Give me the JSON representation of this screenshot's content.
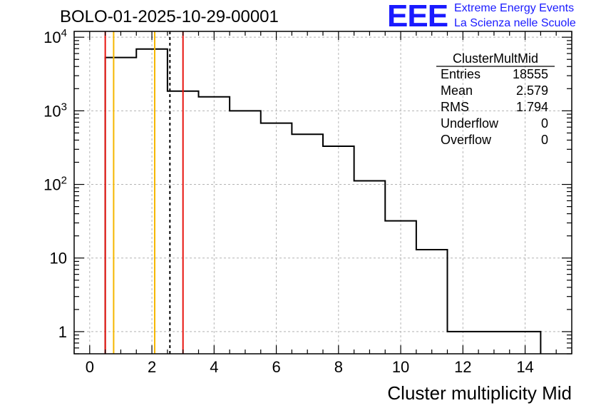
{
  "chart_data": {
    "type": "histogram",
    "title": "BOLO-01-2025-10-29-00001",
    "xlabel": "Cluster multiplicity Mid",
    "ylabel": "",
    "xlim": [
      -0.5,
      15.5
    ],
    "ylim": [
      0.5,
      12000
    ],
    "yscale": "log",
    "grid": true,
    "bins": [
      {
        "low": 0.5,
        "high": 1.5,
        "count": 5300
      },
      {
        "low": 1.5,
        "high": 2.5,
        "count": 6900
      },
      {
        "low": 2.5,
        "high": 3.5,
        "count": 1850
      },
      {
        "low": 3.5,
        "high": 4.5,
        "count": 1550
      },
      {
        "low": 4.5,
        "high": 5.5,
        "count": 1000
      },
      {
        "low": 5.5,
        "high": 6.5,
        "count": 680
      },
      {
        "low": 6.5,
        "high": 7.5,
        "count": 480
      },
      {
        "low": 7.5,
        "high": 8.5,
        "count": 330
      },
      {
        "low": 8.5,
        "high": 9.5,
        "count": 112
      },
      {
        "low": 9.5,
        "high": 10.5,
        "count": 32
      },
      {
        "low": 10.5,
        "high": 11.5,
        "count": 13
      },
      {
        "low": 11.5,
        "high": 14.5,
        "count": 1
      }
    ],
    "xticks": [
      "0",
      "2",
      "4",
      "6",
      "8",
      "10",
      "12",
      "14"
    ],
    "xtick_values": [
      0,
      2,
      4,
      6,
      8,
      10,
      12,
      14
    ],
    "yticks": [
      {
        "value": 10000,
        "base": "10",
        "exp": "4"
      },
      {
        "value": 1000,
        "base": "10",
        "exp": "3"
      },
      {
        "value": 100,
        "base": "10",
        "exp": "2"
      },
      {
        "value": 10,
        "base": "10",
        "exp": ""
      },
      {
        "value": 1,
        "base": "1",
        "exp": ""
      }
    ],
    "vlines": [
      {
        "x": 0.5,
        "color": "#e8140e",
        "style": "solid"
      },
      {
        "x": 0.77,
        "color": "#f5b700",
        "style": "solid"
      },
      {
        "x": 2.09,
        "color": "#f5b700",
        "style": "solid"
      },
      {
        "x": 2.579,
        "color": "#000000",
        "style": "dashed"
      },
      {
        "x": 3.0,
        "color": "#e8140e",
        "style": "solid"
      }
    ],
    "stats": {
      "name": "ClusterMultMid",
      "rows": [
        {
          "label": "Entries",
          "value": "18555"
        },
        {
          "label": "Mean",
          "value": "2.579"
        },
        {
          "label": "RMS",
          "value": "1.794"
        },
        {
          "label": "Underflow",
          "value": "0"
        },
        {
          "label": "Overflow",
          "value": "0"
        }
      ]
    }
  },
  "logo": {
    "mark": "EEE",
    "line1": "Extreme Energy Events",
    "line2": "La Scienza nelle Scuole",
    "color": "#1a1aff"
  }
}
